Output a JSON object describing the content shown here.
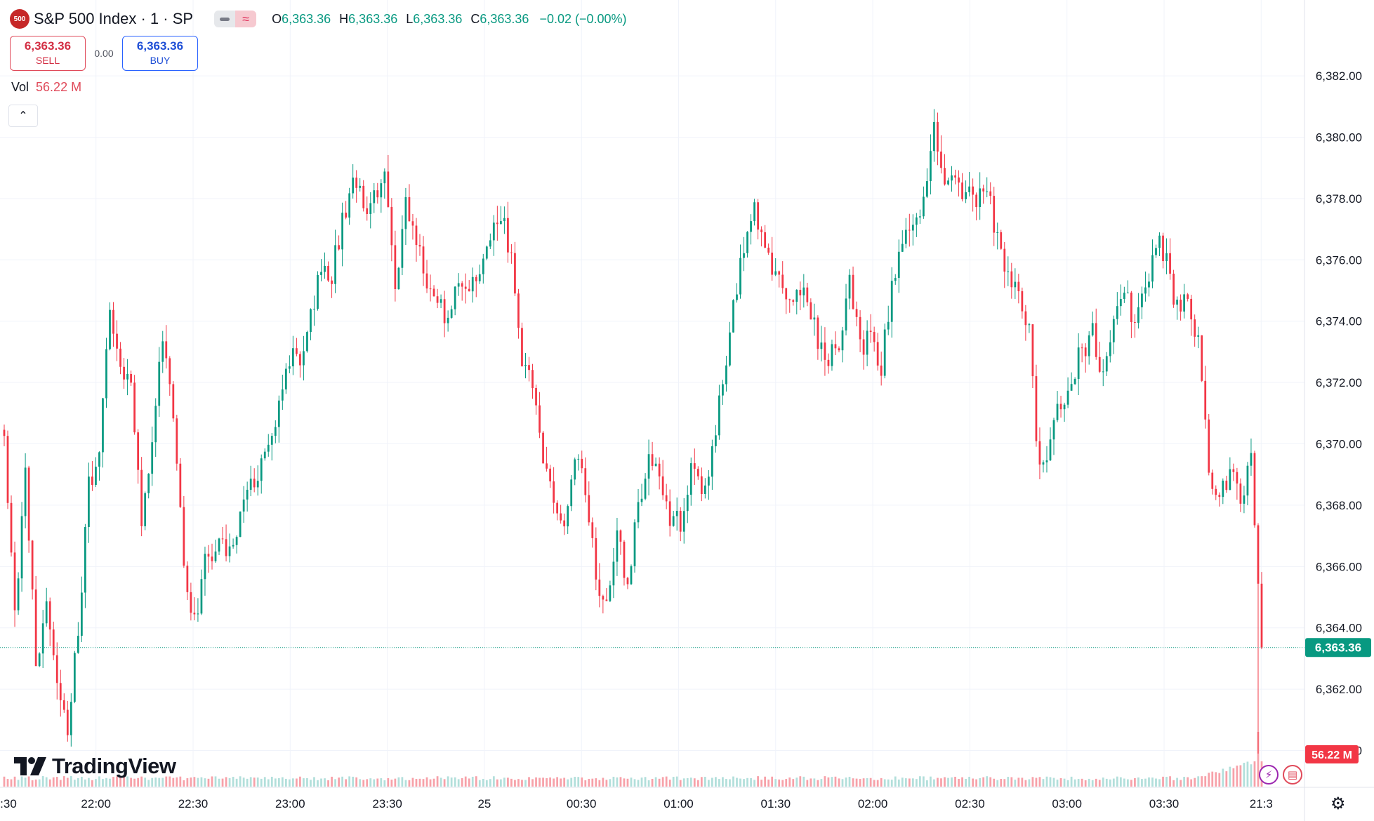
{
  "header": {
    "symbol_badge": "500",
    "symbol_name": "S&P 500 Index · 1 · SP",
    "indicator_icon": "≈",
    "ohlc": {
      "o_key": "O",
      "o_val": "6,363.36",
      "h_key": "H",
      "h_val": "6,363.36",
      "l_key": "L",
      "l_val": "6,363.36",
      "c_key": "C",
      "c_val": "6,363.36",
      "change": "−0.02 (−0.00%)"
    }
  },
  "trade": {
    "sell_price": "6,363.36",
    "sell_label": "SELL",
    "spread": "0.00",
    "buy_price": "6,363.36",
    "buy_label": "BUY"
  },
  "volume": {
    "label": "Vol",
    "value": "56.22 M"
  },
  "collapse_icon": "⌃",
  "branding": {
    "name": "TradingView"
  },
  "price_tag": "6,363.36",
  "volume_tag": "56.22 M",
  "settings_icon": "⚙",
  "colors": {
    "up": "#089981",
    "down": "#f23645",
    "up_volume": "#b2dfdb",
    "down_volume": "#f7a1a9",
    "grid": "#f0f3fa",
    "text": "#131722",
    "price_tag": "#089981",
    "volume_tag": "#f23645"
  },
  "chart_data": {
    "type": "candlestick",
    "title": "S&P 500 Index · 1 · SP",
    "interval": "1 minute",
    "y_ticks": [
      "6,382.00",
      "6,380.00",
      "6,378.00",
      "6,376.00",
      "6,374.00",
      "6,372.00",
      "6,370.00",
      "6,368.00",
      "6,366.00",
      "6,364.00",
      "6,362.00",
      "6,360.00"
    ],
    "x_ticks": [
      ":30",
      "22:00",
      "22:30",
      "23:00",
      "23:30",
      "25",
      "00:30",
      "01:00",
      "01:30",
      "02:00",
      "02:30",
      "03:00",
      "03:30",
      "21:3"
    ],
    "ylim": [
      6358.8,
      6383.1
    ],
    "last_price": 6363.36,
    "grid": true,
    "price_path": [
      [
        0,
        6370.3
      ],
      [
        3,
        6364.2
      ],
      [
        6,
        6369.0
      ],
      [
        9,
        6363.0
      ],
      [
        12,
        6364.5
      ],
      [
        15,
        6362.0
      ],
      [
        18,
        6360.8
      ],
      [
        21,
        6363.7
      ],
      [
        24,
        6368.5
      ],
      [
        27,
        6370.1
      ],
      [
        30,
        6374.3
      ],
      [
        33,
        6372.8
      ],
      [
        36,
        6371.6
      ],
      [
        39,
        6367.4
      ],
      [
        42,
        6370.1
      ],
      [
        45,
        6373.3
      ],
      [
        48,
        6371.0
      ],
      [
        51,
        6366.3
      ],
      [
        54,
        6364.2
      ],
      [
        57,
        6366.1
      ],
      [
        60,
        6366.8
      ],
      [
        63,
        6366.3
      ],
      [
        66,
        6367.2
      ],
      [
        69,
        6368.5
      ],
      [
        72,
        6369.2
      ],
      [
        75,
        6369.8
      ],
      [
        78,
        6371.5
      ],
      [
        81,
        6372.8
      ],
      [
        84,
        6373.0
      ],
      [
        87,
        6374.2
      ],
      [
        90,
        6376.0
      ],
      [
        93,
        6375.6
      ],
      [
        96,
        6377.2
      ],
      [
        99,
        6378.7
      ],
      [
        102,
        6377.6
      ],
      [
        105,
        6378.0
      ],
      [
        108,
        6378.6
      ],
      [
        111,
        6375.3
      ],
      [
        114,
        6377.6
      ],
      [
        117,
        6376.3
      ],
      [
        120,
        6375.5
      ],
      [
        123,
        6374.6
      ],
      [
        126,
        6373.8
      ],
      [
        129,
        6375.6
      ],
      [
        132,
        6374.7
      ],
      [
        135,
        6375.6
      ],
      [
        138,
        6376.7
      ],
      [
        141,
        6377.3
      ],
      [
        144,
        6376.2
      ],
      [
        147,
        6372.7
      ],
      [
        150,
        6371.6
      ],
      [
        153,
        6369.6
      ],
      [
        156,
        6368.4
      ],
      [
        159,
        6367.6
      ],
      [
        162,
        6369.8
      ],
      [
        165,
        6368.5
      ],
      [
        168,
        6365.7
      ],
      [
        171,
        6364.6
      ],
      [
        174,
        6366.8
      ],
      [
        177,
        6365.5
      ],
      [
        180,
        6368.0
      ],
      [
        183,
        6369.9
      ],
      [
        186,
        6368.7
      ],
      [
        189,
        6367.7
      ],
      [
        192,
        6367.3
      ],
      [
        195,
        6369.0
      ],
      [
        198,
        6368.5
      ],
      [
        201,
        6369.6
      ],
      [
        204,
        6372.2
      ],
      [
        207,
        6374.4
      ],
      [
        210,
        6376.4
      ],
      [
        213,
        6377.5
      ],
      [
        216,
        6376.2
      ],
      [
        219,
        6375.7
      ],
      [
        222,
        6374.3
      ],
      [
        225,
        6375.2
      ],
      [
        228,
        6374.6
      ],
      [
        231,
        6373.4
      ],
      [
        234,
        6372.7
      ],
      [
        237,
        6373.2
      ],
      [
        240,
        6375.1
      ],
      [
        243,
        6373.1
      ],
      [
        246,
        6373.6
      ],
      [
        249,
        6372.6
      ],
      [
        252,
        6375.0
      ],
      [
        255,
        6376.8
      ],
      [
        258,
        6377.4
      ],
      [
        261,
        6377.8
      ],
      [
        264,
        6380.2
      ],
      [
        267,
        6378.6
      ],
      [
        270,
        6379.1
      ],
      [
        273,
        6378.0
      ],
      [
        276,
        6377.9
      ],
      [
        279,
        6378.5
      ],
      [
        282,
        6376.6
      ],
      [
        285,
        6375.3
      ],
      [
        288,
        6374.8
      ],
      [
        291,
        6373.7
      ],
      [
        294,
        6368.9
      ],
      [
        297,
        6370.4
      ],
      [
        300,
        6371.1
      ],
      [
        303,
        6371.8
      ],
      [
        306,
        6373.2
      ],
      [
        309,
        6373.5
      ],
      [
        312,
        6372.4
      ],
      [
        315,
        6374.1
      ],
      [
        318,
        6375.0
      ],
      [
        321,
        6373.8
      ],
      [
        324,
        6375.2
      ],
      [
        327,
        6376.8
      ],
      [
        330,
        6375.8
      ],
      [
        333,
        6374.5
      ],
      [
        336,
        6374.9
      ],
      [
        339,
        6373.2
      ],
      [
        342,
        6369.4
      ],
      [
        345,
        6368.1
      ],
      [
        348,
        6369.3
      ],
      [
        351,
        6367.9
      ],
      [
        354,
        6369.6
      ],
      [
        357,
        6363.36
      ]
    ],
    "volume_note": "volume bars along bottom, last bar 56.22 M"
  }
}
